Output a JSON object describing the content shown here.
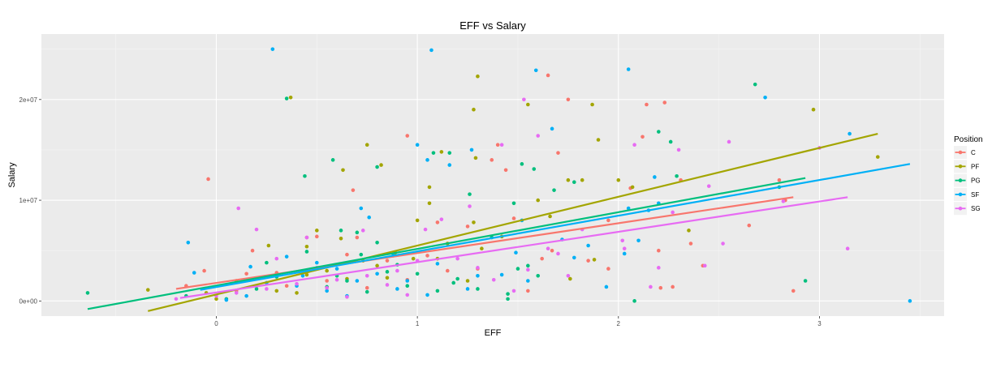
{
  "chart_data": {
    "type": "scatter",
    "title": "EFF vs Salary",
    "xlabel": "EFF",
    "ylabel": "Salary",
    "xlim": [
      -0.87,
      3.62
    ],
    "ylim": [
      -1500000,
      26500000
    ],
    "x_ticks": [
      0,
      1,
      2,
      3
    ],
    "x_tick_labels": [
      "0",
      "1",
      "2",
      "3"
    ],
    "y_ticks": [
      0,
      10000000,
      20000000
    ],
    "y_tick_labels": [
      "0e+00",
      "1e+07",
      "2e+07"
    ],
    "grid": true,
    "legend": {
      "title": "Position",
      "placement": "right"
    },
    "series": [
      {
        "name": "C",
        "color": "#F8766D",
        "trend": {
          "x": [
            -0.2,
            2.87
          ],
          "y": [
            1200000,
            10300000
          ]
        },
        "points": [
          [
            -0.04,
            12100000
          ],
          [
            -0.06,
            3000000
          ],
          [
            0.18,
            5000000
          ],
          [
            0.5,
            6400000
          ],
          [
            0.68,
            11000000
          ],
          [
            0.95,
            16400000
          ],
          [
            1.25,
            7400000
          ],
          [
            1.37,
            14000000
          ],
          [
            1.4,
            15500000
          ],
          [
            1.44,
            13000000
          ],
          [
            1.48,
            8200000
          ],
          [
            1.65,
            22400000
          ],
          [
            1.75,
            20000000
          ],
          [
            1.7,
            14700000
          ],
          [
            1.95,
            3200000
          ],
          [
            2.06,
            11200000
          ],
          [
            2.12,
            16300000
          ],
          [
            2.14,
            19500000
          ],
          [
            2.23,
            19700000
          ],
          [
            2.21,
            1300000
          ],
          [
            2.27,
            1400000
          ],
          [
            2.31,
            12000000
          ],
          [
            2.42,
            3500000
          ],
          [
            2.8,
            12000000
          ],
          [
            2.87,
            1000000
          ],
          [
            2.83,
            10000000
          ],
          [
            2.36,
            5700000
          ],
          [
            2.2,
            5000000
          ],
          [
            1.85,
            4000000
          ],
          [
            1.67,
            5000000
          ],
          [
            1.15,
            3000000
          ],
          [
            0.85,
            4000000
          ],
          [
            0.55,
            2000000
          ],
          [
            0.35,
            1500000
          ],
          [
            0.1,
            1000000
          ],
          [
            -0.15,
            1500000
          ],
          [
            1.3,
            3200000
          ],
          [
            0.7,
            6300000
          ],
          [
            0.45,
            6300000
          ],
          [
            1.55,
            1000000
          ],
          [
            0.95,
            2100000
          ],
          [
            2.65,
            7500000
          ],
          [
            0.3,
            2800000
          ],
          [
            0.65,
            4600000
          ],
          [
            1.05,
            4500000
          ],
          [
            1.95,
            8000000
          ],
          [
            1.1,
            7800000
          ],
          [
            1.62,
            4200000
          ],
          [
            0.15,
            2700000
          ],
          [
            0.75,
            1300000
          ]
        ]
      },
      {
        "name": "PF",
        "color": "#A3A500",
        "trend": {
          "x": [
            -0.34,
            3.29
          ],
          "y": [
            -1000000,
            16600000
          ]
        },
        "points": [
          [
            0.37,
            20200000
          ],
          [
            0.75,
            15500000
          ],
          [
            0.63,
            13000000
          ],
          [
            0.82,
            13500000
          ],
          [
            1.06,
            11300000
          ],
          [
            1.06,
            9700000
          ],
          [
            1.12,
            14800000
          ],
          [
            1.28,
            19000000
          ],
          [
            1.3,
            22300000
          ],
          [
            1.29,
            14200000
          ],
          [
            1.28,
            7800000
          ],
          [
            1.55,
            19500000
          ],
          [
            1.6,
            10000000
          ],
          [
            1.75,
            12000000
          ],
          [
            1.87,
            19500000
          ],
          [
            1.9,
            16000000
          ],
          [
            2.0,
            12000000
          ],
          [
            2.07,
            11300000
          ],
          [
            2.97,
            19000000
          ],
          [
            3.29,
            14300000
          ],
          [
            2.35,
            7000000
          ],
          [
            1.82,
            12000000
          ],
          [
            1.25,
            2000000
          ],
          [
            0.5,
            7000000
          ],
          [
            0.1,
            2000000
          ],
          [
            -0.05,
            800000
          ],
          [
            -0.34,
            1100000
          ],
          [
            0.26,
            5500000
          ],
          [
            0.45,
            5400000
          ],
          [
            0.62,
            6200000
          ],
          [
            0.73,
            4000000
          ],
          [
            0.89,
            4800000
          ],
          [
            0.98,
            4200000
          ],
          [
            1.15,
            5700000
          ],
          [
            1.42,
            6400000
          ],
          [
            1.66,
            8400000
          ],
          [
            1.76,
            2200000
          ],
          [
            0.3,
            1000000
          ],
          [
            0.55,
            3000000
          ],
          [
            0.8,
            3500000
          ],
          [
            0.65,
            2200000
          ],
          [
            0.4,
            800000
          ],
          [
            0.0,
            200000
          ],
          [
            0.2,
            1500000
          ],
          [
            1.0,
            8000000
          ],
          [
            1.1,
            4200000
          ],
          [
            0.85,
            2300000
          ],
          [
            0.45,
            2600000
          ],
          [
            1.32,
            5200000
          ],
          [
            1.88,
            4100000
          ]
        ]
      },
      {
        "name": "PG",
        "color": "#00BF7D",
        "trend": {
          "x": [
            -0.64,
            2.93
          ],
          "y": [
            -800000,
            12200000
          ]
        },
        "points": [
          [
            -0.64,
            800000
          ],
          [
            0.35,
            20100000
          ],
          [
            0.44,
            12400000
          ],
          [
            0.58,
            14000000
          ],
          [
            0.8,
            13300000
          ],
          [
            1.08,
            14700000
          ],
          [
            1.16,
            14700000
          ],
          [
            1.26,
            10600000
          ],
          [
            1.52,
            13600000
          ],
          [
            1.58,
            13100000
          ],
          [
            1.68,
            11000000
          ],
          [
            1.78,
            11800000
          ],
          [
            2.2,
            16800000
          ],
          [
            2.26,
            15800000
          ],
          [
            2.29,
            12400000
          ],
          [
            2.68,
            21500000
          ],
          [
            2.8,
            11300000
          ],
          [
            2.93,
            2000000
          ],
          [
            2.08,
            0
          ],
          [
            1.45,
            200000
          ],
          [
            1.45,
            700000
          ],
          [
            1.1,
            1000000
          ],
          [
            0.8,
            5800000
          ],
          [
            0.85,
            2900000
          ],
          [
            0.55,
            1400000
          ],
          [
            0.6,
            2500000
          ],
          [
            0.3,
            2400000
          ],
          [
            0.05,
            200000
          ],
          [
            -0.15,
            500000
          ],
          [
            0.25,
            3800000
          ],
          [
            0.62,
            7000000
          ],
          [
            0.72,
            4600000
          ],
          [
            0.9,
            3600000
          ],
          [
            0.95,
            1500000
          ],
          [
            1.3,
            1200000
          ],
          [
            1.55,
            3500000
          ],
          [
            1.6,
            2500000
          ],
          [
            1.37,
            6300000
          ],
          [
            0.45,
            4900000
          ],
          [
            0.7,
            6800000
          ],
          [
            1.5,
            3200000
          ],
          [
            0.65,
            2000000
          ],
          [
            0.2,
            1200000
          ],
          [
            1.0,
            2700000
          ],
          [
            1.18,
            1800000
          ],
          [
            0.75,
            900000
          ],
          [
            1.48,
            9700000
          ],
          [
            1.2,
            2200000
          ]
        ]
      },
      {
        "name": "SF",
        "color": "#00B0F6",
        "trend": {
          "x": [
            -0.08,
            3.45
          ],
          "y": [
            1100000,
            13600000
          ]
        },
        "points": [
          [
            0.28,
            25000000
          ],
          [
            1.07,
            24900000
          ],
          [
            1.59,
            22900000
          ],
          [
            2.05,
            23000000
          ],
          [
            2.73,
            20200000
          ],
          [
            3.15,
            16600000
          ],
          [
            1.67,
            17100000
          ],
          [
            1.0,
            15500000
          ],
          [
            1.27,
            15000000
          ],
          [
            1.05,
            14000000
          ],
          [
            1.16,
            13500000
          ],
          [
            0.72,
            9200000
          ],
          [
            0.76,
            8300000
          ],
          [
            1.52,
            8000000
          ],
          [
            2.03,
            4700000
          ],
          [
            2.1,
            6000000
          ],
          [
            1.94,
            1400000
          ],
          [
            3.45,
            0
          ],
          [
            -0.14,
            5800000
          ],
          [
            -0.11,
            2800000
          ],
          [
            0.17,
            3400000
          ],
          [
            0.43,
            2500000
          ],
          [
            0.55,
            1000000
          ],
          [
            0.65,
            500000
          ],
          [
            0.7,
            2000000
          ],
          [
            0.9,
            1200000
          ],
          [
            1.1,
            3700000
          ],
          [
            1.3,
            2500000
          ],
          [
            1.49,
            4800000
          ],
          [
            1.72,
            6100000
          ],
          [
            1.85,
            5500000
          ],
          [
            2.15,
            9000000
          ],
          [
            2.18,
            12300000
          ],
          [
            2.05,
            9200000
          ],
          [
            0.35,
            4400000
          ],
          [
            0.5,
            3800000
          ],
          [
            0.8,
            2700000
          ],
          [
            0.95,
            2000000
          ],
          [
            1.05,
            600000
          ],
          [
            1.25,
            1200000
          ],
          [
            0.15,
            500000
          ],
          [
            0.05,
            100000
          ],
          [
            0.6,
            3200000
          ],
          [
            1.42,
            2600000
          ],
          [
            2.2,
            9700000
          ],
          [
            1.78,
            4300000
          ],
          [
            0.4,
            1500000
          ],
          [
            0.25,
            1800000
          ],
          [
            1.55,
            2000000
          ],
          [
            0.88,
            4500000
          ]
        ]
      },
      {
        "name": "SG",
        "color": "#E76BF3",
        "trend": {
          "x": [
            -0.18,
            3.14
          ],
          "y": [
            300000,
            10300000
          ]
        },
        "points": [
          [
            0.11,
            9200000
          ],
          [
            0.2,
            7100000
          ],
          [
            0.45,
            6300000
          ],
          [
            0.73,
            7000000
          ],
          [
            1.04,
            7100000
          ],
          [
            1.26,
            9400000
          ],
          [
            1.42,
            15500000
          ],
          [
            1.53,
            20000000
          ],
          [
            1.6,
            16400000
          ],
          [
            2.08,
            15500000
          ],
          [
            2.55,
            15800000
          ],
          [
            2.3,
            15000000
          ],
          [
            3.0,
            15200000
          ],
          [
            3.14,
            5200000
          ],
          [
            2.43,
            3500000
          ],
          [
            2.52,
            5700000
          ],
          [
            2.45,
            11400000
          ],
          [
            2.16,
            1400000
          ],
          [
            2.27,
            8800000
          ],
          [
            2.03,
            5200000
          ],
          [
            1.82,
            7100000
          ],
          [
            1.65,
            5200000
          ],
          [
            1.55,
            3100000
          ],
          [
            1.38,
            2100000
          ],
          [
            1.2,
            4200000
          ],
          [
            1.0,
            4000000
          ],
          [
            0.9,
            3000000
          ],
          [
            0.75,
            2500000
          ],
          [
            0.6,
            2100000
          ],
          [
            0.4,
            1700000
          ],
          [
            0.25,
            1200000
          ],
          [
            0.1,
            800000
          ],
          [
            -0.2,
            200000
          ],
          [
            0.0,
            500000
          ],
          [
            0.5,
            3300000
          ],
          [
            0.85,
            1600000
          ],
          [
            1.12,
            8100000
          ],
          [
            2.82,
            9900000
          ],
          [
            1.7,
            4700000
          ],
          [
            2.02,
            6000000
          ],
          [
            0.3,
            4200000
          ],
          [
            0.95,
            600000
          ],
          [
            1.3,
            3300000
          ],
          [
            1.48,
            1000000
          ],
          [
            2.2,
            3300000
          ],
          [
            0.65,
            400000
          ],
          [
            1.75,
            2500000
          ],
          [
            0.55,
            1300000
          ]
        ]
      }
    ]
  }
}
